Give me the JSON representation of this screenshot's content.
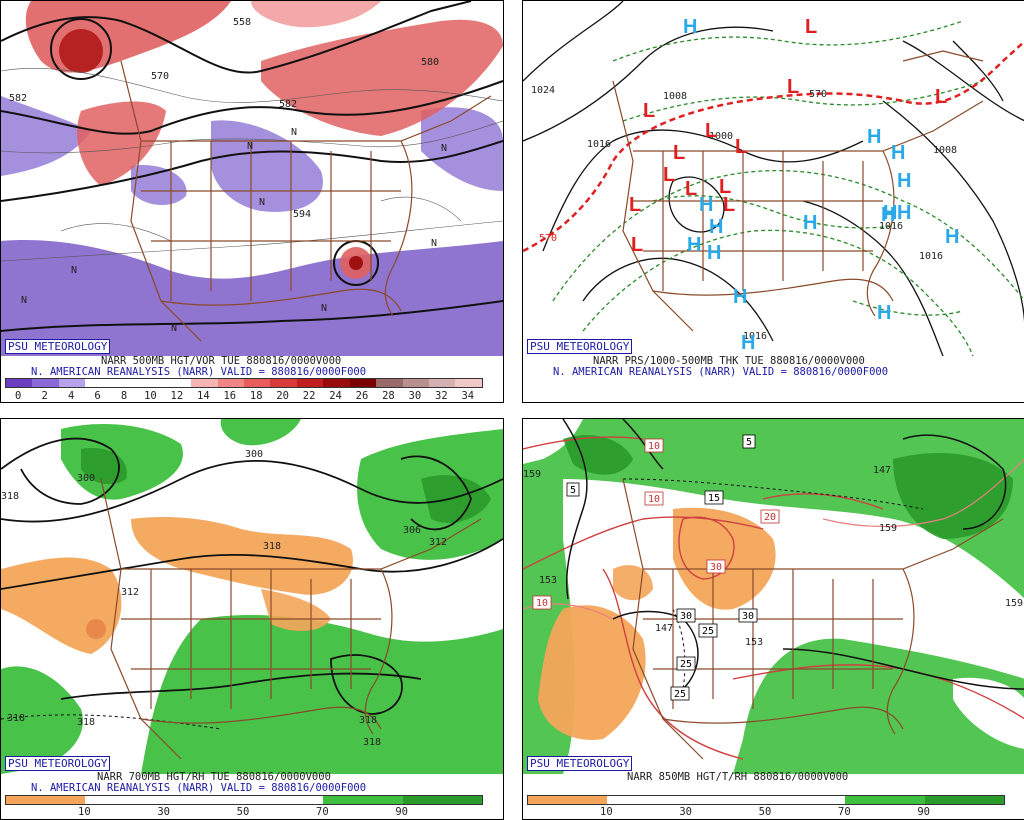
{
  "colors": {
    "vort_low": "#7b5cc8",
    "vort_high": "#d94a4a",
    "rh_dry": "#f4a55a",
    "rh_moist": "#3fbf3f",
    "border": "#8a4a2a",
    "low_marker": "#e02020",
    "high_marker": "#2aa8e8"
  },
  "panels": [
    {
      "badge": "PSU METEOROLOGY",
      "caption_line1": "NARR 500MB HGT/VOR TUE 880816/0000V000",
      "caption_line2": "N. AMERICAN REANALYSIS (NARR) VALID = 880816/0000F000",
      "contour_labels": [
        "582",
        "558",
        "570",
        "582",
        "594",
        "580",
        "N",
        "N",
        "N",
        "N",
        "N",
        "N",
        "N",
        "N",
        "N"
      ],
      "colorbar_ticks": [
        "0",
        "2",
        "4",
        "6",
        "8",
        "10",
        "12",
        "14",
        "16",
        "18",
        "20",
        "22",
        "24",
        "26",
        "28",
        "30",
        "32",
        "34"
      ],
      "colorbar_colors": [
        "#6a3fbf",
        "#8a6ad8",
        "#b7a3ea",
        "#ffffff",
        "#ffffff",
        "#ffffff",
        "#ffffff",
        "#f7b4b4",
        "#f08585",
        "#e85c5c",
        "#d93a3a",
        "#c01e1e",
        "#9a0c0c",
        "#7a0000",
        "#9a6a6a",
        "#b89090",
        "#d4b0b0",
        "#f0c8c8"
      ]
    },
    {
      "badge": "PSU METEOROLOGY",
      "caption_line1": "NARR PRS/1000-500MB THK TUE 880816/0000V000",
      "caption_line2": "N. AMERICAN REANALYSIS (NARR) VALID = 880816/0000F000",
      "contour_labels": [
        "1024",
        "1008",
        "1016",
        "570",
        "570",
        "1008",
        "1016",
        "1016",
        "1000",
        "1016"
      ],
      "low_markers": [
        "L",
        "L",
        "L",
        "L",
        "L",
        "L",
        "L",
        "L",
        "L",
        "L",
        "L",
        "L",
        "L"
      ],
      "high_markers": [
        "H",
        "H",
        "H",
        "H",
        "H",
        "H",
        "H",
        "H",
        "H",
        "H",
        "H",
        "H",
        "H",
        "H",
        "H",
        "H"
      ]
    },
    {
      "badge": "PSU METEOROLOGY",
      "caption_line1": "NARR 700MB HGT/RH TUE 880816/0000V000",
      "caption_line2": "N. AMERICAN REANALYSIS (NARR) VALID = 880816/0000F000",
      "contour_labels": [
        "300",
        "300",
        "318",
        "306",
        "312",
        "318",
        "312",
        "318",
        "318",
        "318",
        "318"
      ],
      "colorbar_ticks": [
        "10",
        "30",
        "50",
        "70",
        "90"
      ],
      "colorbar_colors": [
        "#f4a55a",
        "#ffffff",
        "#ffffff",
        "#ffffff",
        "#3fbf3f",
        "#2a9a2a"
      ]
    },
    {
      "badge": "PSU METEOROLOGY",
      "caption_line1": "NARR 850MB HGT/T/RH 880816/0000V000",
      "contour_labels": [
        "5",
        "5",
        "15",
        "20",
        "10",
        "10",
        "10",
        "30",
        "30",
        "30",
        "25",
        "25",
        "25",
        "147",
        "153",
        "153",
        "159",
        "159",
        "147",
        "159"
      ],
      "colorbar_ticks": [
        "10",
        "30",
        "50",
        "70",
        "90"
      ],
      "colorbar_colors": [
        "#f4a55a",
        "#ffffff",
        "#ffffff",
        "#ffffff",
        "#3fbf3f",
        "#2a9a2a"
      ]
    }
  ]
}
